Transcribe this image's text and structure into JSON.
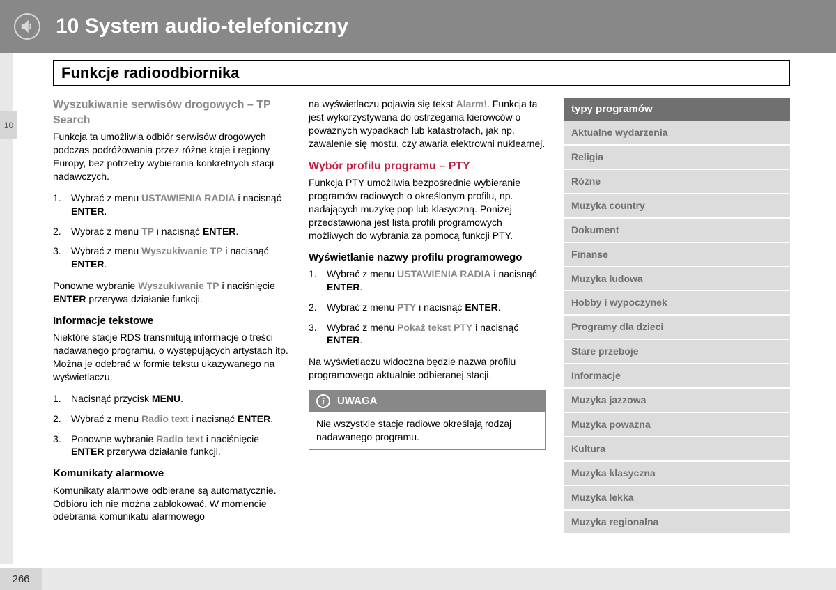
{
  "header": {
    "chapter_number": "10",
    "title": "System audio-telefoniczny"
  },
  "section_title": "Funkcje radioodbiornika",
  "tab_number": "10",
  "page_number": "266",
  "col1": {
    "tp_search": {
      "heading": "Wyszukiwanie serwisów drogowych – TP Search",
      "intro": "Funkcja ta umożliwia odbiór serwisów drogowych podczas podróżowania przez różne kraje i regiony Europy, bez potrzeby wybierania konkretnych stacji nadawczych.",
      "steps": [
        {
          "n": "1.",
          "pre": "Wybrać z menu ",
          "term": "USTAWIENIA RADIA",
          "mid": " i nacisnąć ",
          "bold": "ENTER",
          "post": "."
        },
        {
          "n": "2.",
          "pre": "Wybrać z menu ",
          "term": "TP",
          "mid": " i nacisnąć ",
          "bold": "ENTER",
          "post": "."
        },
        {
          "n": "3.",
          "pre": "Wybrać z menu ",
          "term": "Wyszukiwanie TP",
          "mid": " i nacisnąć ",
          "bold": "ENTER",
          "post": "."
        }
      ],
      "footer_pre": "Ponowne wybranie ",
      "footer_term": "Wyszukiwanie TP",
      "footer_mid": " i naciśnięcie ",
      "footer_bold": "ENTER",
      "footer_post": " przerywa działanie funkcji."
    },
    "text_info": {
      "heading": "Informacje tekstowe",
      "intro": "Niektóre stacje RDS transmitują informacje o treści nadawanego programu, o występujących artystach itp. Można je odebrać w formie tekstu ukazywanego na wyświetlaczu.",
      "steps": [
        {
          "n": "1.",
          "pre": "Nacisnąć przycisk ",
          "bold": "MENU",
          "post": "."
        },
        {
          "n": "2.",
          "pre": "Wybrać z menu ",
          "term": "Radio text",
          "mid": " i nacisnąć ",
          "bold": "ENTER",
          "post": "."
        },
        {
          "n": "3.",
          "pre": "Ponowne wybranie ",
          "term": "Radio text",
          "mid": " i naciśnięcie ",
          "bold": "ENTER",
          "post": " przerywa działanie funkcji."
        }
      ]
    },
    "alarm": {
      "heading": "Komunikaty alarmowe",
      "text": "Komunikaty alarmowe odbierane są automatycznie. Odbioru ich nie można zablokować. W momencie odebrania komunikatu alarmowego"
    }
  },
  "col2": {
    "cont_pre": "na wyświetlaczu pojawia się tekst ",
    "cont_term": "Alarm!",
    "cont_post": ". Funkcja ta jest wykorzystywana do ostrzegania kierowców o poważnych wypadkach lub katastrofach, jak np. zawalenie się mostu, czy awaria elektrowni nuklearnej.",
    "pty": {
      "heading": "Wybór profilu programu – PTY",
      "intro": "Funkcja PTY umożliwia bezpośrednie wybieranie programów radiowych o określonym profilu, np. nadających muzykę pop lub klasyczną. Poniżej przedstawiona jest lista profili programowych możliwych do wybrania za pomocą funkcji PTY."
    },
    "profile": {
      "heading": "Wyświetlanie nazwy profilu programowego",
      "steps": [
        {
          "n": "1.",
          "pre": "Wybrać z menu ",
          "term": "USTAWIENIA RADIA",
          "mid": " i nacisnąć ",
          "bold": "ENTER",
          "post": "."
        },
        {
          "n": "2.",
          "pre": "Wybrać z menu ",
          "term": "PTY",
          "mid": " i nacisnąć ",
          "bold": "ENTER",
          "post": "."
        },
        {
          "n": "3.",
          "pre": "Wybrać z menu ",
          "term": "Pokaż tekst PTY",
          "mid": " i nacisnąć ",
          "bold": "ENTER",
          "post": "."
        }
      ],
      "footer": "Na wyświetlaczu widoczna będzie nazwa profilu programowego aktualnie odbieranej stacji."
    },
    "note": {
      "label": "UWAGA",
      "body": "Nie wszystkie stacje radiowe określają rodzaj nadawanego programu."
    }
  },
  "col3": {
    "table_header": "typy programów",
    "rows": [
      "Aktualne wydarzenia",
      "Religia",
      "Różne",
      "Muzyka country",
      "Dokument",
      "Finanse",
      "Muzyka ludowa",
      "Hobby i wypoczynek",
      "Programy dla dzieci",
      "Stare przeboje",
      "Informacje",
      "Muzyka jazzowa",
      "Muzyka poważna",
      "Kultura",
      "Muzyka klasyczna",
      "Muzyka lekka",
      "Muzyka regionalna"
    ]
  }
}
